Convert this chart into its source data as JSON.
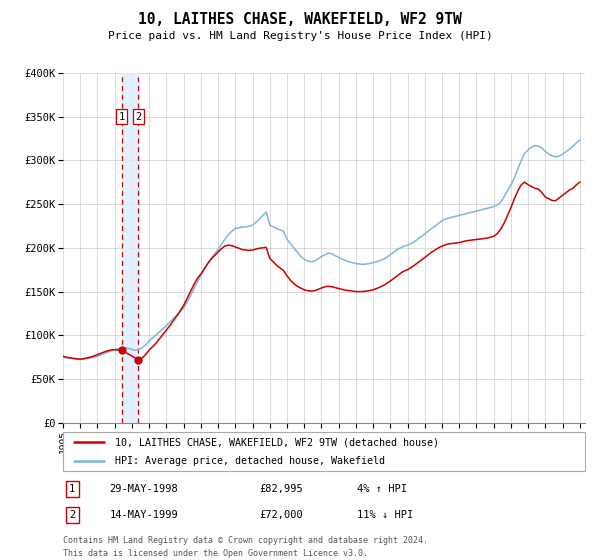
{
  "title": "10, LAITHES CHASE, WAKEFIELD, WF2 9TW",
  "subtitle": "Price paid vs. HM Land Registry's House Price Index (HPI)",
  "legend_line1": "10, LAITHES CHASE, WAKEFIELD, WF2 9TW (detached house)",
  "legend_line2": "HPI: Average price, detached house, Wakefield",
  "footer1": "Contains HM Land Registry data © Crown copyright and database right 2024.",
  "footer2": "This data is licensed under the Open Government Licence v3.0.",
  "transaction1_date": "29-MAY-1998",
  "transaction1_price": "£82,995",
  "transaction1_hpi": "4% ↑ HPI",
  "transaction2_date": "14-MAY-1999",
  "transaction2_price": "£72,000",
  "transaction2_hpi": "11% ↓ HPI",
  "sale1_x": 1998.41,
  "sale1_y": 82995,
  "sale2_x": 1999.37,
  "sale2_y": 72000,
  "vline1_x": 1998.41,
  "vline2_x": 1999.37,
  "hpi_color": "#7bb8d8",
  "price_color": "#cc0000",
  "vline_color": "#cc0000",
  "shade_color": "#ddeeff",
  "ylim": [
    0,
    400000
  ],
  "xlim_start": 1995.0,
  "xlim_end": 2025.3,
  "yticks": [
    0,
    50000,
    100000,
    150000,
    200000,
    250000,
    300000,
    350000,
    400000
  ],
  "ytick_labels": [
    "£0",
    "£50K",
    "£100K",
    "£150K",
    "£200K",
    "£250K",
    "£300K",
    "£350K",
    "£400K"
  ],
  "xtick_years": [
    1995,
    1996,
    1997,
    1998,
    1999,
    2000,
    2001,
    2002,
    2003,
    2004,
    2005,
    2006,
    2007,
    2008,
    2009,
    2010,
    2011,
    2012,
    2013,
    2014,
    2015,
    2016,
    2017,
    2018,
    2019,
    2020,
    2021,
    2022,
    2023,
    2024,
    2025
  ],
  "hpi_data": [
    [
      1995.0,
      75000
    ],
    [
      1995.1,
      74500
    ],
    [
      1995.2,
      74200
    ],
    [
      1995.3,
      73800
    ],
    [
      1995.4,
      73500
    ],
    [
      1995.5,
      73200
    ],
    [
      1995.6,
      73000
    ],
    [
      1995.7,
      72800
    ],
    [
      1995.8,
      72600
    ],
    [
      1995.9,
      72500
    ],
    [
      1996.0,
      72400
    ],
    [
      1996.1,
      72600
    ],
    [
      1996.2,
      72800
    ],
    [
      1996.3,
      73000
    ],
    [
      1996.4,
      73300
    ],
    [
      1996.5,
      73700
    ],
    [
      1996.6,
      74000
    ],
    [
      1996.7,
      74400
    ],
    [
      1996.8,
      74900
    ],
    [
      1996.9,
      75400
    ],
    [
      1997.0,
      76000
    ],
    [
      1997.1,
      76800
    ],
    [
      1997.2,
      77500
    ],
    [
      1997.3,
      78300
    ],
    [
      1997.4,
      79100
    ],
    [
      1997.5,
      79900
    ],
    [
      1997.6,
      80700
    ],
    [
      1997.7,
      81500
    ],
    [
      1997.8,
      82200
    ],
    [
      1997.9,
      82900
    ],
    [
      1998.0,
      83500
    ],
    [
      1998.1,
      84100
    ],
    [
      1998.2,
      84700
    ],
    [
      1998.3,
      85200
    ],
    [
      1998.4,
      85600
    ],
    [
      1998.5,
      85900
    ],
    [
      1998.6,
      85800
    ],
    [
      1998.7,
      85500
    ],
    [
      1998.8,
      85000
    ],
    [
      1998.9,
      84500
    ],
    [
      1999.0,
      83800
    ],
    [
      1999.1,
      83200
    ],
    [
      1999.2,
      83000
    ],
    [
      1999.3,
      83200
    ],
    [
      1999.4,
      83800
    ],
    [
      1999.5,
      84700
    ],
    [
      1999.6,
      86000
    ],
    [
      1999.7,
      87500
    ],
    [
      1999.8,
      89200
    ],
    [
      1999.9,
      91200
    ],
    [
      2000.0,
      93500
    ],
    [
      2000.2,
      97000
    ],
    [
      2000.4,
      100500
    ],
    [
      2000.6,
      104000
    ],
    [
      2000.8,
      107500
    ],
    [
      2001.0,
      111000
    ],
    [
      2001.2,
      115000
    ],
    [
      2001.4,
      119000
    ],
    [
      2001.6,
      123000
    ],
    [
      2001.8,
      127000
    ],
    [
      2002.0,
      131000
    ],
    [
      2002.2,
      138000
    ],
    [
      2002.4,
      145000
    ],
    [
      2002.6,
      153000
    ],
    [
      2002.8,
      161000
    ],
    [
      2003.0,
      168000
    ],
    [
      2003.2,
      175000
    ],
    [
      2003.4,
      182000
    ],
    [
      2003.6,
      188000
    ],
    [
      2003.8,
      193000
    ],
    [
      2004.0,
      198000
    ],
    [
      2004.2,
      204000
    ],
    [
      2004.4,
      210000
    ],
    [
      2004.6,
      215000
    ],
    [
      2004.8,
      219000
    ],
    [
      2005.0,
      222000
    ],
    [
      2005.2,
      223000
    ],
    [
      2005.4,
      223500
    ],
    [
      2005.6,
      224000
    ],
    [
      2005.8,
      224500
    ],
    [
      2006.0,
      226000
    ],
    [
      2006.2,
      229000
    ],
    [
      2006.4,
      233000
    ],
    [
      2006.6,
      237000
    ],
    [
      2006.8,
      241000
    ],
    [
      2007.0,
      226000
    ],
    [
      2007.2,
      224000
    ],
    [
      2007.4,
      222000
    ],
    [
      2007.6,
      220500
    ],
    [
      2007.8,
      219000
    ],
    [
      2008.0,
      210000
    ],
    [
      2008.2,
      205000
    ],
    [
      2008.4,
      200000
    ],
    [
      2008.6,
      195000
    ],
    [
      2008.8,
      190000
    ],
    [
      2009.0,
      187000
    ],
    [
      2009.2,
      185000
    ],
    [
      2009.4,
      184000
    ],
    [
      2009.6,
      185000
    ],
    [
      2009.8,
      187000
    ],
    [
      2010.0,
      190000
    ],
    [
      2010.2,
      192000
    ],
    [
      2010.4,
      194000
    ],
    [
      2010.6,
      193000
    ],
    [
      2010.8,
      191000
    ],
    [
      2011.0,
      189000
    ],
    [
      2011.2,
      187000
    ],
    [
      2011.4,
      185500
    ],
    [
      2011.6,
      184000
    ],
    [
      2011.8,
      183000
    ],
    [
      2012.0,
      182000
    ],
    [
      2012.2,
      181500
    ],
    [
      2012.4,
      181000
    ],
    [
      2012.6,
      181500
    ],
    [
      2012.8,
      182000
    ],
    [
      2013.0,
      183000
    ],
    [
      2013.2,
      184000
    ],
    [
      2013.4,
      185500
    ],
    [
      2013.6,
      187000
    ],
    [
      2013.8,
      189000
    ],
    [
      2014.0,
      192000
    ],
    [
      2014.2,
      195000
    ],
    [
      2014.4,
      198000
    ],
    [
      2014.6,
      200000
    ],
    [
      2014.8,
      202000
    ],
    [
      2015.0,
      203000
    ],
    [
      2015.2,
      205000
    ],
    [
      2015.4,
      207000
    ],
    [
      2015.6,
      210000
    ],
    [
      2015.8,
      213000
    ],
    [
      2016.0,
      216000
    ],
    [
      2016.2,
      219000
    ],
    [
      2016.4,
      222000
    ],
    [
      2016.6,
      225000
    ],
    [
      2016.8,
      228000
    ],
    [
      2017.0,
      231000
    ],
    [
      2017.2,
      233000
    ],
    [
      2017.4,
      234000
    ],
    [
      2017.6,
      235000
    ],
    [
      2017.8,
      236000
    ],
    [
      2018.0,
      237000
    ],
    [
      2018.2,
      238000
    ],
    [
      2018.4,
      239000
    ],
    [
      2018.6,
      240000
    ],
    [
      2018.8,
      241000
    ],
    [
      2019.0,
      242000
    ],
    [
      2019.2,
      243000
    ],
    [
      2019.4,
      244000
    ],
    [
      2019.6,
      245000
    ],
    [
      2019.8,
      246000
    ],
    [
      2020.0,
      247000
    ],
    [
      2020.2,
      249000
    ],
    [
      2020.4,
      252000
    ],
    [
      2020.6,
      258000
    ],
    [
      2020.8,
      265000
    ],
    [
      2021.0,
      272000
    ],
    [
      2021.2,
      280000
    ],
    [
      2021.4,
      290000
    ],
    [
      2021.6,
      300000
    ],
    [
      2021.8,
      308000
    ],
    [
      2022.0,
      312000
    ],
    [
      2022.2,
      315000
    ],
    [
      2022.4,
      317000
    ],
    [
      2022.6,
      316000
    ],
    [
      2022.8,
      314000
    ],
    [
      2023.0,
      310000
    ],
    [
      2023.2,
      307000
    ],
    [
      2023.4,
      305000
    ],
    [
      2023.6,
      304000
    ],
    [
      2023.8,
      305000
    ],
    [
      2024.0,
      307000
    ],
    [
      2024.2,
      310000
    ],
    [
      2024.4,
      313000
    ],
    [
      2024.6,
      316000
    ],
    [
      2024.8,
      320000
    ],
    [
      2025.0,
      323000
    ]
  ],
  "price_data": [
    [
      1995.0,
      76000
    ],
    [
      1995.1,
      75500
    ],
    [
      1995.2,
      75000
    ],
    [
      1995.3,
      74500
    ],
    [
      1995.4,
      74200
    ],
    [
      1995.5,
      73900
    ],
    [
      1995.6,
      73700
    ],
    [
      1995.7,
      73400
    ],
    [
      1995.8,
      73200
    ],
    [
      1995.9,
      73000
    ],
    [
      1996.0,
      72800
    ],
    [
      1996.1,
      73000
    ],
    [
      1996.2,
      73300
    ],
    [
      1996.3,
      73700
    ],
    [
      1996.4,
      74100
    ],
    [
      1996.5,
      74600
    ],
    [
      1996.6,
      75100
    ],
    [
      1996.7,
      75700
    ],
    [
      1996.8,
      76400
    ],
    [
      1996.9,
      77100
    ],
    [
      1997.0,
      77900
    ],
    [
      1997.1,
      78700
    ],
    [
      1997.2,
      79500
    ],
    [
      1997.3,
      80300
    ],
    [
      1997.4,
      81000
    ],
    [
      1997.5,
      81700
    ],
    [
      1997.6,
      82300
    ],
    [
      1997.7,
      82800
    ],
    [
      1997.8,
      83200
    ],
    [
      1997.9,
      83500
    ],
    [
      1998.41,
      82995
    ],
    [
      1999.37,
      72000
    ],
    [
      1999.5,
      73000
    ],
    [
      1999.6,
      74200
    ],
    [
      1999.7,
      76000
    ],
    [
      1999.8,
      78200
    ],
    [
      1999.9,
      80500
    ],
    [
      2000.0,
      83000
    ],
    [
      2000.2,
      87000
    ],
    [
      2000.4,
      91000
    ],
    [
      2000.6,
      96000
    ],
    [
      2000.8,
      101000
    ],
    [
      2001.0,
      106000
    ],
    [
      2001.2,
      111000
    ],
    [
      2001.4,
      116500
    ],
    [
      2001.6,
      122000
    ],
    [
      2001.8,
      128000
    ],
    [
      2002.0,
      134000
    ],
    [
      2002.2,
      142000
    ],
    [
      2002.4,
      150000
    ],
    [
      2002.6,
      158000
    ],
    [
      2002.8,
      165000
    ],
    [
      2003.0,
      170000
    ],
    [
      2003.2,
      176000
    ],
    [
      2003.4,
      182000
    ],
    [
      2003.6,
      187000
    ],
    [
      2003.8,
      191000
    ],
    [
      2004.0,
      195000
    ],
    [
      2004.2,
      199000
    ],
    [
      2004.4,
      202000
    ],
    [
      2004.6,
      203000
    ],
    [
      2004.8,
      202500
    ],
    [
      2005.0,
      201000
    ],
    [
      2005.2,
      199500
    ],
    [
      2005.4,
      198000
    ],
    [
      2005.6,
      197500
    ],
    [
      2005.8,
      197000
    ],
    [
      2006.0,
      197500
    ],
    [
      2006.2,
      198500
    ],
    [
      2006.4,
      199500
    ],
    [
      2006.6,
      200000
    ],
    [
      2006.8,
      200500
    ],
    [
      2007.0,
      188000
    ],
    [
      2007.2,
      184000
    ],
    [
      2007.4,
      180000
    ],
    [
      2007.6,
      177000
    ],
    [
      2007.8,
      174000
    ],
    [
      2008.0,
      168000
    ],
    [
      2008.2,
      163000
    ],
    [
      2008.4,
      159000
    ],
    [
      2008.6,
      156000
    ],
    [
      2008.8,
      154000
    ],
    [
      2009.0,
      152000
    ],
    [
      2009.2,
      151000
    ],
    [
      2009.4,
      150500
    ],
    [
      2009.6,
      151000
    ],
    [
      2009.8,
      152500
    ],
    [
      2010.0,
      154000
    ],
    [
      2010.2,
      155500
    ],
    [
      2010.4,
      156000
    ],
    [
      2010.6,
      155500
    ],
    [
      2010.8,
      154500
    ],
    [
      2011.0,
      153500
    ],
    [
      2011.2,
      152500
    ],
    [
      2011.4,
      151500
    ],
    [
      2011.6,
      151000
    ],
    [
      2011.8,
      150500
    ],
    [
      2012.0,
      150000
    ],
    [
      2012.2,
      150000
    ],
    [
      2012.4,
      150000
    ],
    [
      2012.6,
      150500
    ],
    [
      2012.8,
      151000
    ],
    [
      2013.0,
      152000
    ],
    [
      2013.2,
      153500
    ],
    [
      2013.4,
      155000
    ],
    [
      2013.6,
      157000
    ],
    [
      2013.8,
      159500
    ],
    [
      2014.0,
      162000
    ],
    [
      2014.2,
      165000
    ],
    [
      2014.4,
      168000
    ],
    [
      2014.6,
      171000
    ],
    [
      2014.8,
      173500
    ],
    [
      2015.0,
      175000
    ],
    [
      2015.2,
      177500
    ],
    [
      2015.4,
      180000
    ],
    [
      2015.6,
      183000
    ],
    [
      2015.8,
      186000
    ],
    [
      2016.0,
      189000
    ],
    [
      2016.2,
      192000
    ],
    [
      2016.4,
      195000
    ],
    [
      2016.6,
      197500
    ],
    [
      2016.8,
      200000
    ],
    [
      2017.0,
      202000
    ],
    [
      2017.2,
      203500
    ],
    [
      2017.4,
      204500
    ],
    [
      2017.6,
      205000
    ],
    [
      2017.8,
      205500
    ],
    [
      2018.0,
      206000
    ],
    [
      2018.2,
      207000
    ],
    [
      2018.4,
      208000
    ],
    [
      2018.6,
      208500
    ],
    [
      2018.8,
      209000
    ],
    [
      2019.0,
      209500
    ],
    [
      2019.2,
      210000
    ],
    [
      2019.4,
      210500
    ],
    [
      2019.6,
      211000
    ],
    [
      2019.8,
      212000
    ],
    [
      2020.0,
      213000
    ],
    [
      2020.2,
      216000
    ],
    [
      2020.4,
      221000
    ],
    [
      2020.6,
      228000
    ],
    [
      2020.8,
      237000
    ],
    [
      2021.0,
      246000
    ],
    [
      2021.2,
      256000
    ],
    [
      2021.4,
      265000
    ],
    [
      2021.6,
      272000
    ],
    [
      2021.8,
      275000
    ],
    [
      2022.0,
      272000
    ],
    [
      2022.2,
      270000
    ],
    [
      2022.4,
      268000
    ],
    [
      2022.6,
      267000
    ],
    [
      2022.8,
      263000
    ],
    [
      2023.0,
      258000
    ],
    [
      2023.2,
      256000
    ],
    [
      2023.4,
      254000
    ],
    [
      2023.6,
      254000
    ],
    [
      2023.8,
      257000
    ],
    [
      2024.0,
      260000
    ],
    [
      2024.2,
      263000
    ],
    [
      2024.4,
      266000
    ],
    [
      2024.6,
      268000
    ],
    [
      2024.8,
      272000
    ],
    [
      2025.0,
      275000
    ]
  ]
}
